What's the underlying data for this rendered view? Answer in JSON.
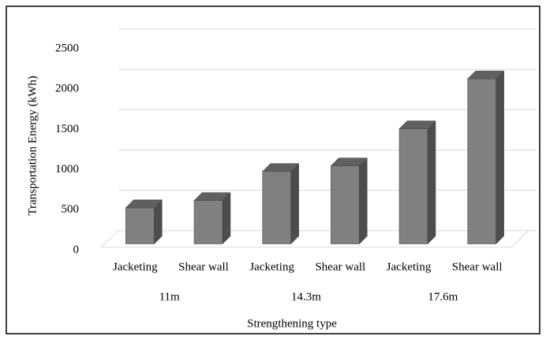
{
  "chart_data": {
    "type": "bar3d",
    "x_label": "Strengthening type",
    "y_label": "Transportation Energy (kWh)",
    "categories": [
      "Jacketing",
      "Shear wall",
      "Jacketing",
      "Shear wall",
      "Jacketing",
      "Shear wall"
    ],
    "groups": [
      "11m",
      "14.3m",
      "17.6m"
    ],
    "values": [
      450,
      540,
      900,
      970,
      1430,
      2050
    ],
    "color": "#808080",
    "ylim": [
      0,
      2500
    ],
    "yticks": [
      0,
      500,
      1000,
      1500,
      2000,
      2500
    ],
    "grid": true
  }
}
